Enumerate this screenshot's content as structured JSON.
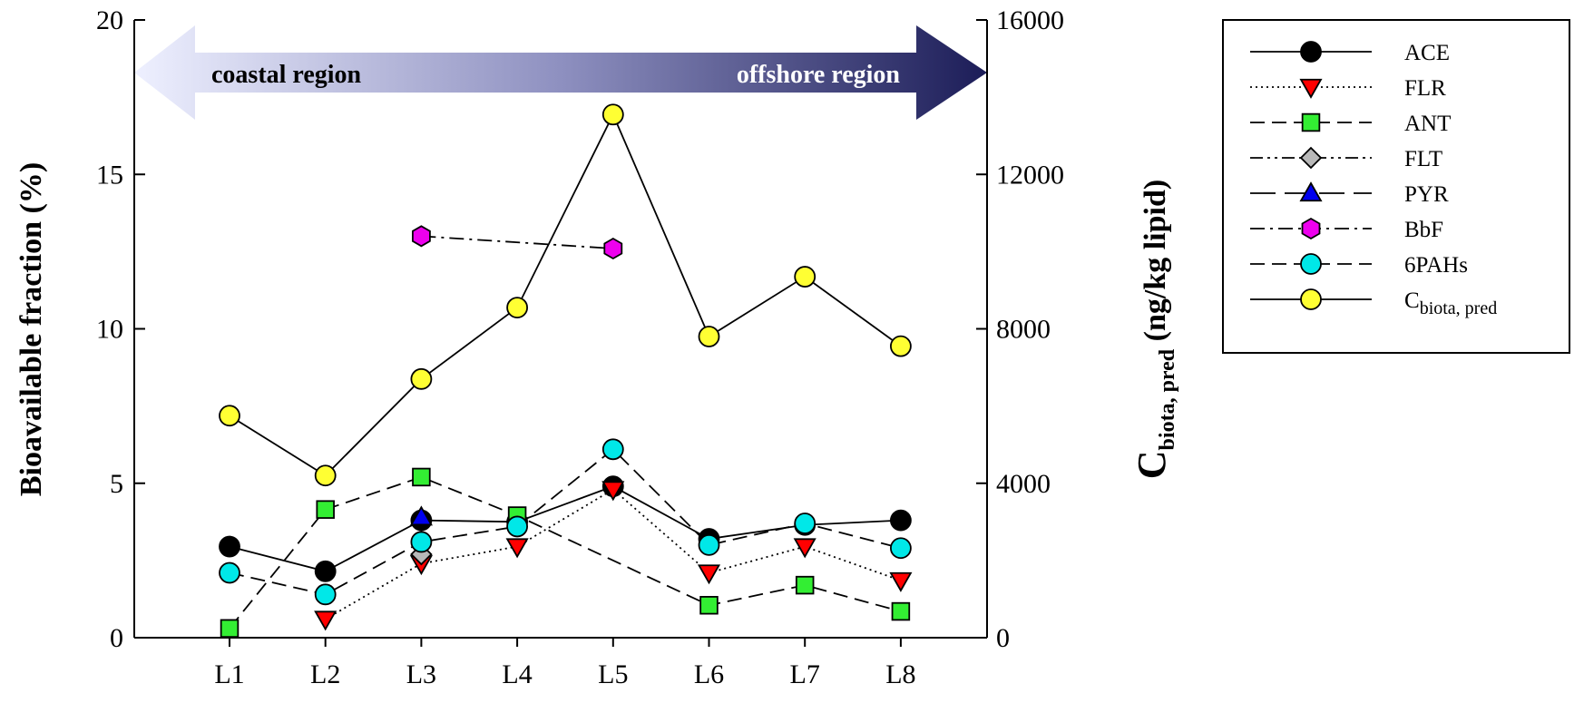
{
  "chart_data": {
    "type": "line",
    "categories": [
      "L1",
      "L2",
      "L3",
      "L4",
      "L5",
      "L6",
      "L7",
      "L8"
    ],
    "ylabel_left": "Bioavailable fraction (%)",
    "ylabel_right_main": "C",
    "ylabel_right_sub": "biota, pred",
    "ylabel_right_tail": " (ng/kg lipid)",
    "ylim_left": [
      0,
      20
    ],
    "yticks_left": [
      0,
      5,
      10,
      15,
      20
    ],
    "ylim_right": [
      0,
      16000
    ],
    "yticks_right": [
      0,
      4000,
      8000,
      12000,
      16000
    ],
    "legend_position": "right",
    "region_left": "coastal  region",
    "region_right": "offshore  region",
    "series": [
      {
        "name": "ACE",
        "axis": "left",
        "marker": "circle",
        "color": "#000000",
        "dash": "solid",
        "values": [
          2.95,
          2.15,
          3.8,
          3.75,
          4.9,
          3.2,
          3.65,
          3.8
        ]
      },
      {
        "name": "FLR",
        "axis": "left",
        "marker": "triangle-down",
        "color": "#ff0000",
        "dash": "dotted",
        "values": [
          null,
          0.6,
          2.4,
          2.95,
          4.8,
          2.1,
          2.95,
          1.85
        ]
      },
      {
        "name": "ANT",
        "axis": "left",
        "marker": "square",
        "color": "#33ee33",
        "dash": "dashed",
        "values": [
          0.3,
          4.15,
          5.2,
          3.95,
          null,
          1.05,
          1.7,
          0.85
        ]
      },
      {
        "name": "FLT",
        "axis": "left",
        "marker": "diamond",
        "color": "#b8b8b8",
        "dash": "dash-dot-dot",
        "values": [
          null,
          null,
          2.7,
          null,
          null,
          null,
          null,
          null
        ]
      },
      {
        "name": "PYR",
        "axis": "left",
        "marker": "triangle-up",
        "color": "#0000ee",
        "dash": "long-dash",
        "values": [
          null,
          null,
          3.9,
          null,
          null,
          null,
          null,
          null
        ]
      },
      {
        "name": "BbF",
        "axis": "left",
        "marker": "hexagon",
        "color": "#ee00ee",
        "dash": "dash-dot",
        "values": [
          null,
          null,
          13.0,
          null,
          12.6,
          null,
          null,
          null
        ]
      },
      {
        "name": "6PAHs",
        "axis": "left",
        "marker": "circle",
        "color": "#00e8e8",
        "dash": "dashed",
        "values": [
          2.1,
          1.4,
          3.1,
          3.6,
          6.1,
          3.0,
          3.7,
          2.9
        ]
      },
      {
        "name_main": "C",
        "name_sub": "biota, pred",
        "axis": "right",
        "marker": "circle",
        "color": "#ffff33",
        "dash": "solid",
        "values": [
          5750,
          4200,
          6700,
          8550,
          13550,
          7800,
          9350,
          7550
        ]
      }
    ]
  }
}
